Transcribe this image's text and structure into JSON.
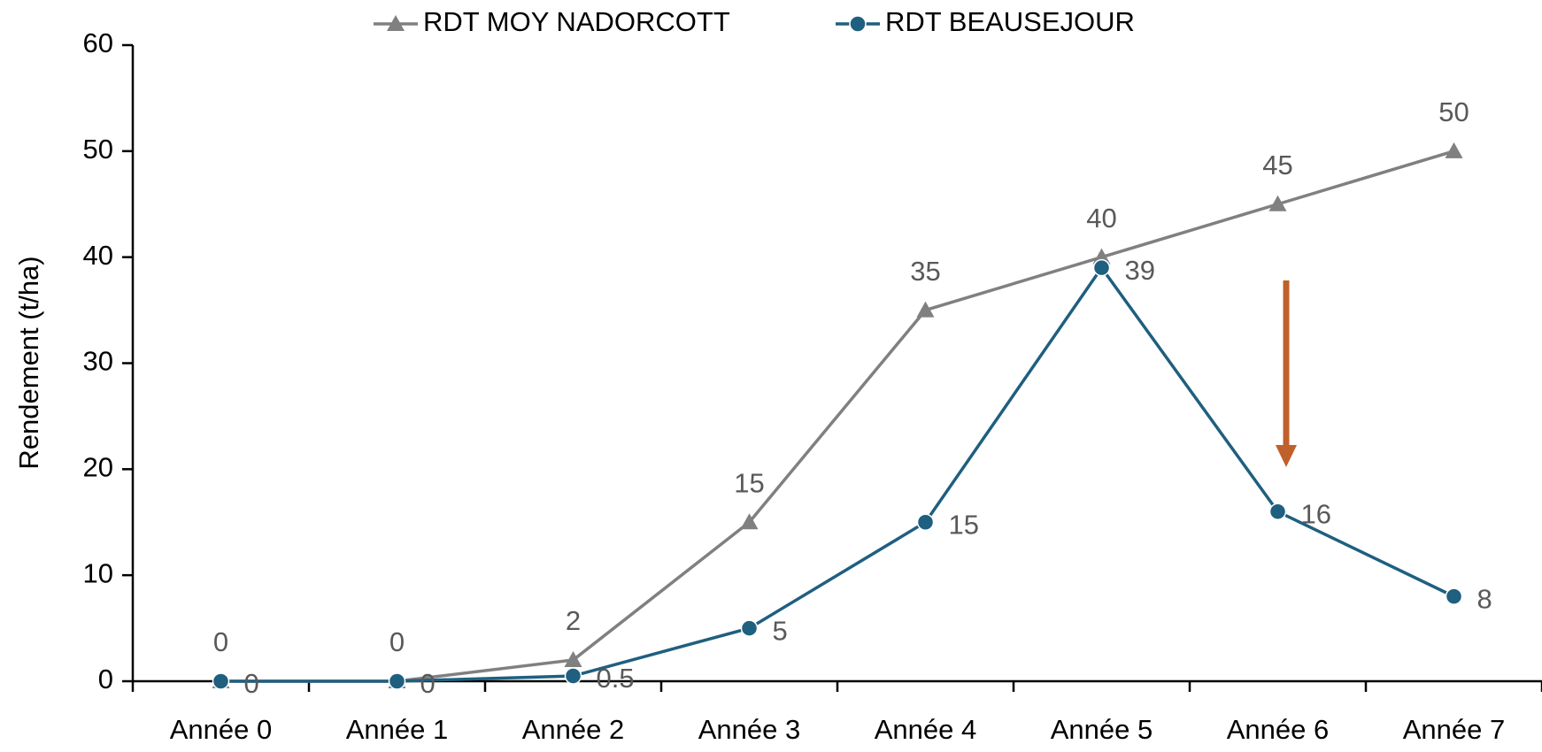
{
  "chart_data": {
    "type": "line",
    "y_label": "Rendement (t/ha)",
    "categories": [
      "Année 0",
      "Année 1",
      "Année 2",
      "Année 3",
      "Année 4",
      "Année 5",
      "Année 6",
      "Année 7"
    ],
    "series": [
      {
        "name": "RDT MOY NADORCOTT",
        "color": "#808080",
        "marker": "triangle",
        "values": [
          0,
          0,
          2,
          15,
          35,
          40,
          45,
          50
        ]
      },
      {
        "name": "RDT BEAUSEJOUR",
        "color": "#1f5f7f",
        "marker": "circle",
        "values": [
          0,
          0,
          0.5,
          5,
          15,
          39,
          16,
          8
        ]
      }
    ],
    "ylim": [
      0,
      60
    ],
    "yticks": [
      0,
      10,
      20,
      30,
      40,
      50,
      60
    ],
    "grid": false,
    "legend": "top"
  }
}
